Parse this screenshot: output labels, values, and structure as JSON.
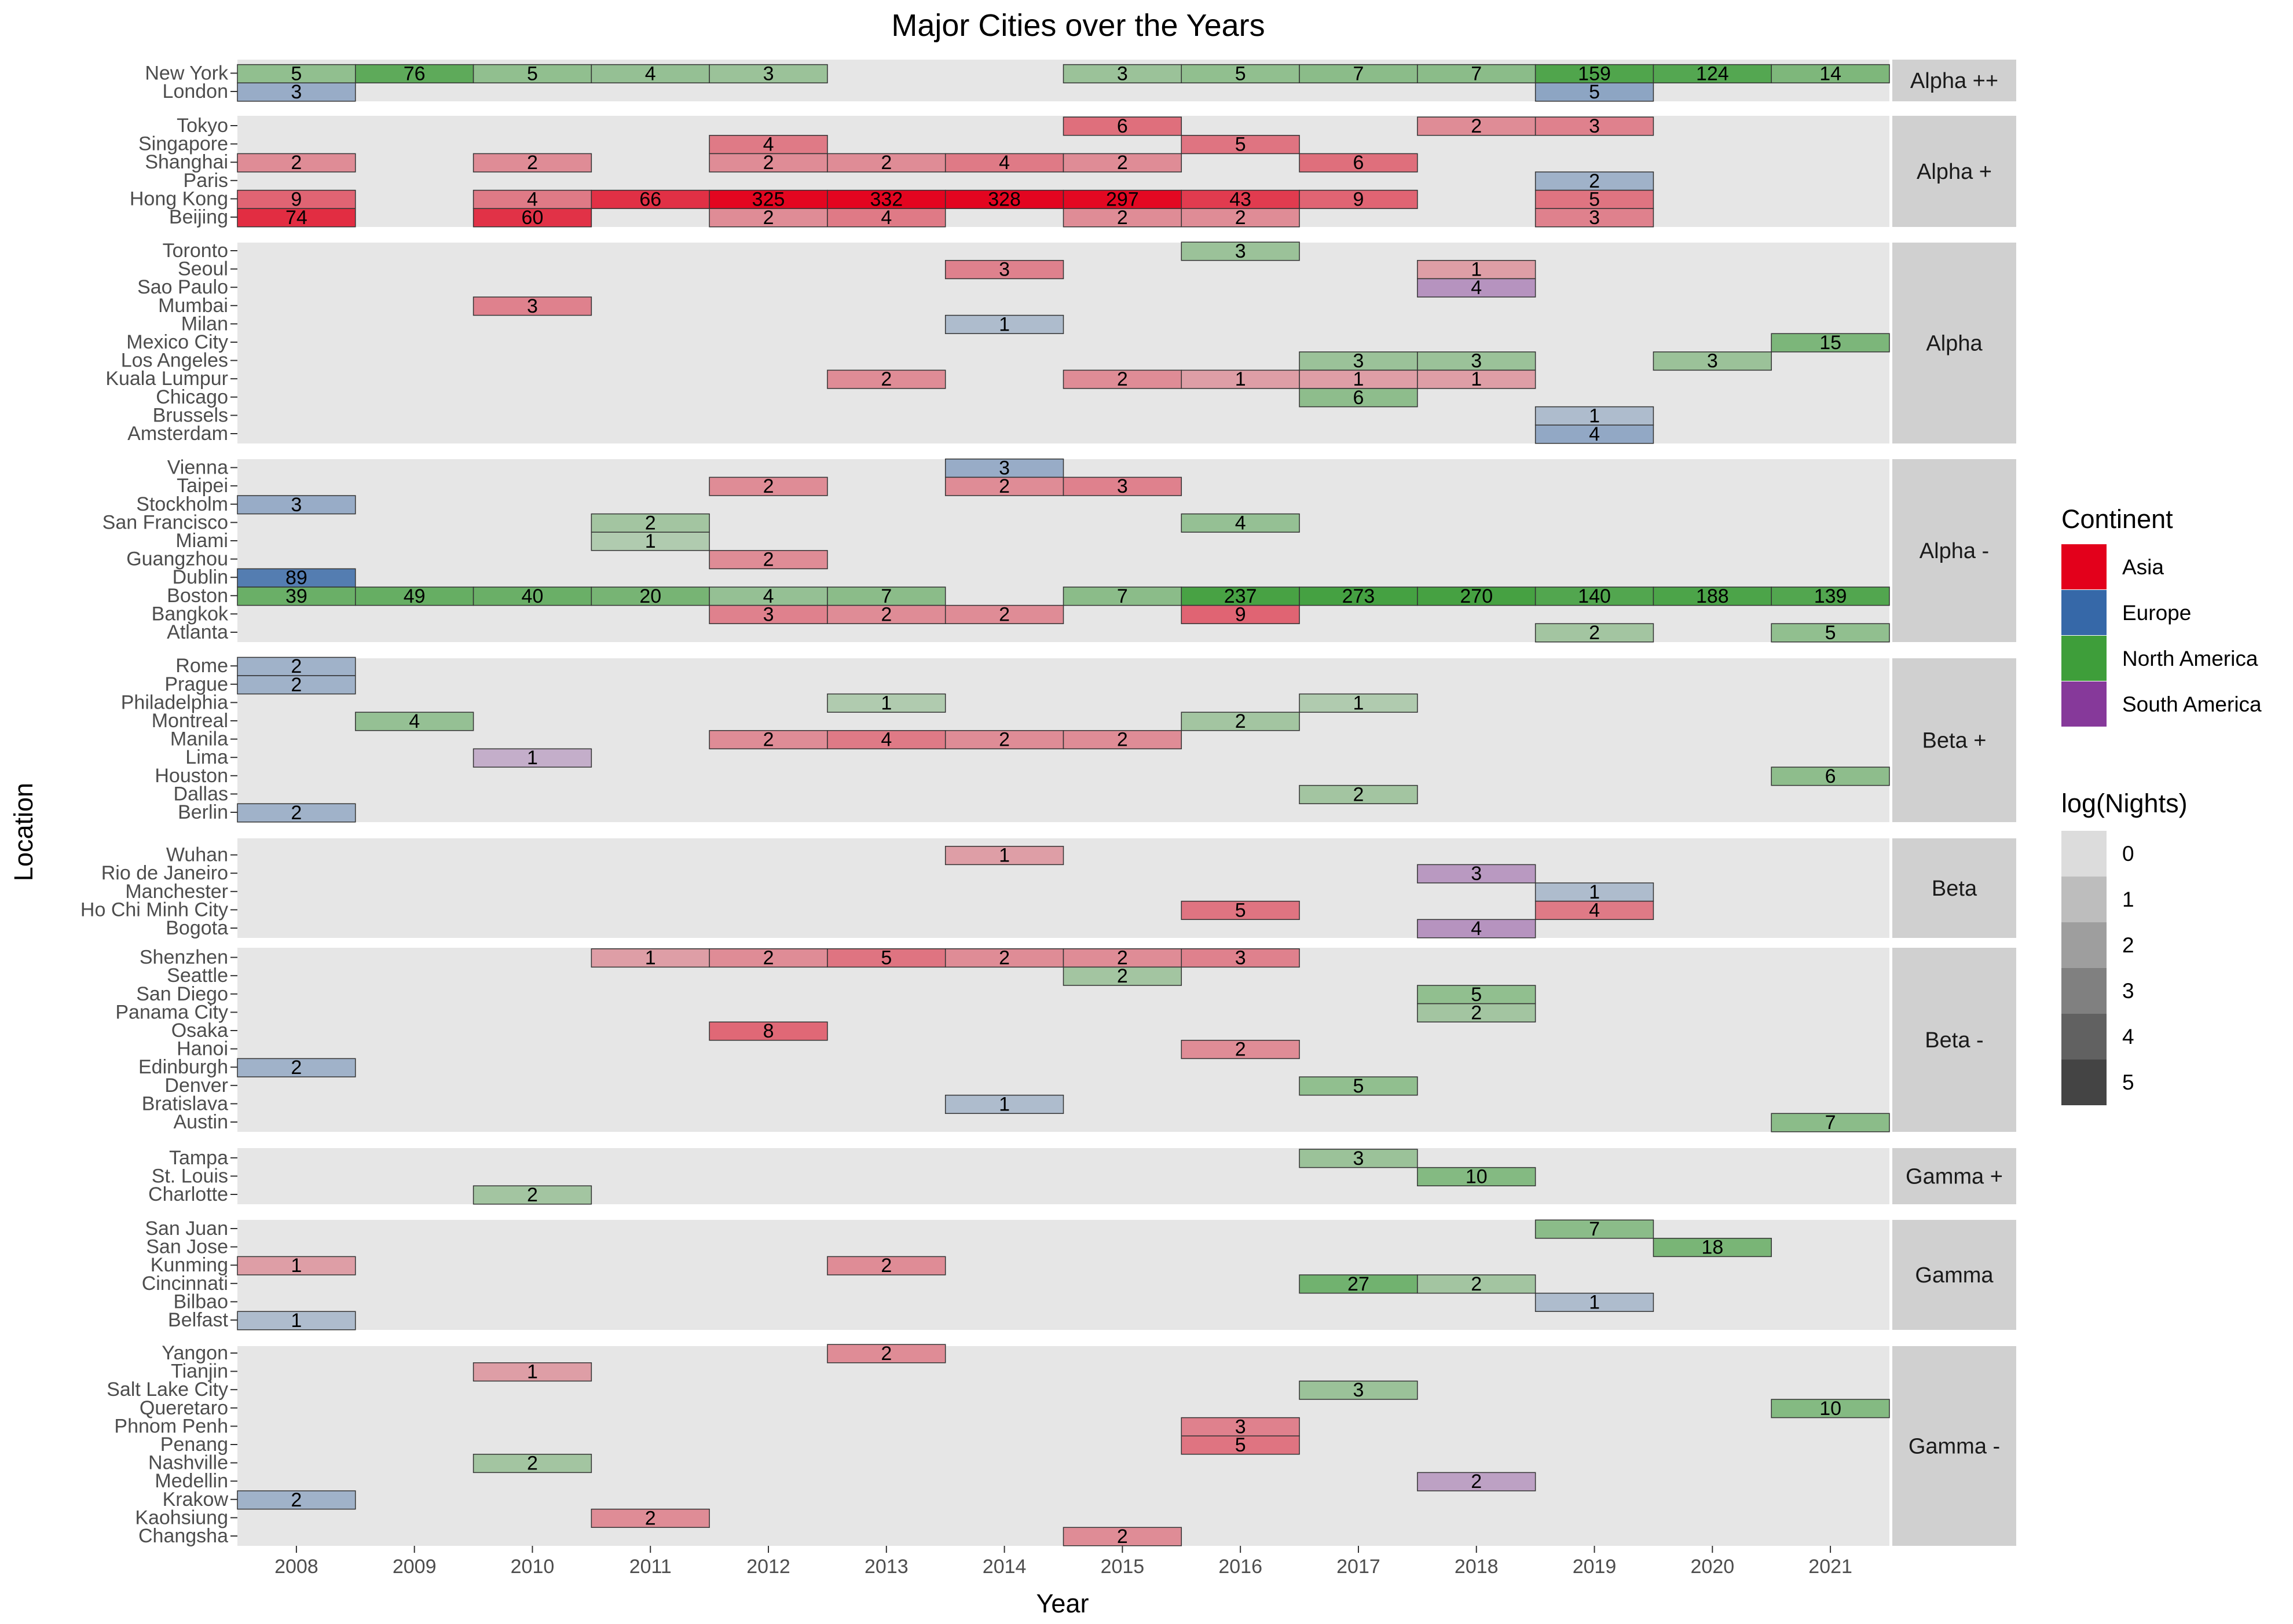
{
  "chart_data": {
    "type": "heatmap",
    "title": "Major Cities over the Years",
    "xlabel": "Year",
    "ylabel": "Location",
    "years": [
      "2008",
      "2009",
      "2010",
      "2011",
      "2012",
      "2013",
      "2014",
      "2015",
      "2016",
      "2017",
      "2018",
      "2019",
      "2020",
      "2021"
    ],
    "continent_colors": {
      "Asia": "#E3001B",
      "Europe": "#3668A8",
      "North America": "#3E9E3A",
      "South America": "#86399A"
    },
    "legend": {
      "continent": {
        "title": "Continent",
        "entries": [
          {
            "label": "Asia",
            "color": "#E3001B"
          },
          {
            "label": "Europe",
            "color": "#3668A8"
          },
          {
            "label": "North America",
            "color": "#3E9E3A"
          },
          {
            "label": "South America",
            "color": "#86399A"
          }
        ]
      },
      "nights": {
        "title": "log(Nights)",
        "entries": [
          {
            "label": "0",
            "color": "#DCDCDC"
          },
          {
            "label": "1",
            "color": "#BDBDBD"
          },
          {
            "label": "2",
            "color": "#9E9E9E"
          },
          {
            "label": "3",
            "color": "#808080"
          },
          {
            "label": "4",
            "color": "#616161"
          },
          {
            "label": "5",
            "color": "#444444"
          }
        ]
      }
    },
    "panels": [
      {
        "label": "Alpha ++",
        "cities": [
          {
            "name": "New York",
            "continent": "North America",
            "nights": {
              "2008": 5,
              "2009": 76,
              "2010": 5,
              "2011": 4,
              "2012": 3,
              "2015": 3,
              "2016": 5,
              "2017": 7,
              "2018": 7,
              "2019": 159,
              "2020": 124,
              "2021": 14
            }
          },
          {
            "name": "London",
            "continent": "Europe",
            "nights": {
              "2008": 3,
              "2019": 5
            }
          }
        ]
      },
      {
        "label": "Alpha +",
        "cities": [
          {
            "name": "Tokyo",
            "continent": "Asia",
            "nights": {
              "2015": 6,
              "2018": 2,
              "2019": 3
            }
          },
          {
            "name": "Singapore",
            "continent": "Asia",
            "nights": {
              "2012": 4,
              "2016": 5
            }
          },
          {
            "name": "Shanghai",
            "continent": "Asia",
            "nights": {
              "2008": 2,
              "2010": 2,
              "2012": 2,
              "2013": 2,
              "2014": 4,
              "2015": 2,
              "2017": 6
            }
          },
          {
            "name": "Paris",
            "continent": "Europe",
            "nights": {
              "2019": 2
            }
          },
          {
            "name": "Hong Kong",
            "continent": "Asia",
            "nights": {
              "2008": 9,
              "2010": 4,
              "2011": 66,
              "2012": 325,
              "2013": 332,
              "2014": 328,
              "2015": 297,
              "2016": 43,
              "2017": 9,
              "2019": 5
            }
          },
          {
            "name": "Beijing",
            "continent": "Asia",
            "nights": {
              "2008": 74,
              "2010": 60,
              "2012": 2,
              "2013": 4,
              "2015": 2,
              "2016": 2,
              "2019": 3
            }
          }
        ]
      },
      {
        "label": "Alpha",
        "cities": [
          {
            "name": "Toronto",
            "continent": "North America",
            "nights": {
              "2016": 3
            }
          },
          {
            "name": "Seoul",
            "continent": "Asia",
            "nights": {
              "2014": 3,
              "2018": 1
            }
          },
          {
            "name": "Sao Paulo",
            "continent": "South America",
            "nights": {
              "2018": 4
            }
          },
          {
            "name": "Mumbai",
            "continent": "Asia",
            "nights": {
              "2010": 3
            }
          },
          {
            "name": "Milan",
            "continent": "Europe",
            "nights": {
              "2014": 1
            }
          },
          {
            "name": "Mexico City",
            "continent": "North America",
            "nights": {
              "2021": 15
            }
          },
          {
            "name": "Los Angeles",
            "continent": "North America",
            "nights": {
              "2017": 3,
              "2018": 3,
              "2020": 3
            }
          },
          {
            "name": "Kuala Lumpur",
            "continent": "Asia",
            "nights": {
              "2013": 2,
              "2015": 2,
              "2016": 1,
              "2017": 1,
              "2018": 1
            }
          },
          {
            "name": "Chicago",
            "continent": "North America",
            "nights": {
              "2017": 6
            }
          },
          {
            "name": "Brussels",
            "continent": "Europe",
            "nights": {
              "2019": 1
            }
          },
          {
            "name": "Amsterdam",
            "continent": "Europe",
            "nights": {
              "2019": 4
            }
          }
        ]
      },
      {
        "label": "Alpha -",
        "cities": [
          {
            "name": "Vienna",
            "continent": "Europe",
            "nights": {
              "2014": 3
            }
          },
          {
            "name": "Taipei",
            "continent": "Asia",
            "nights": {
              "2012": 2,
              "2014": 2,
              "2015": 3
            }
          },
          {
            "name": "Stockholm",
            "continent": "Europe",
            "nights": {
              "2008": 3
            }
          },
          {
            "name": "San Francisco",
            "continent": "North America",
            "nights": {
              "2011": 2,
              "2016": 4
            }
          },
          {
            "name": "Miami",
            "continent": "North America",
            "nights": {
              "2011": 1
            }
          },
          {
            "name": "Guangzhou",
            "continent": "Asia",
            "nights": {
              "2012": 2
            }
          },
          {
            "name": "Dublin",
            "continent": "Europe",
            "nights": {
              "2008": 89
            }
          },
          {
            "name": "Boston",
            "continent": "North America",
            "nights": {
              "2008": 39,
              "2009": 49,
              "2010": 40,
              "2011": 20,
              "2012": 4,
              "2013": 7,
              "2015": 7,
              "2016": 237,
              "2017": 273,
              "2018": 270,
              "2019": 140,
              "2020": 188,
              "2021": 139
            }
          },
          {
            "name": "Bangkok",
            "continent": "Asia",
            "nights": {
              "2012": 3,
              "2013": 2,
              "2014": 2,
              "2016": 9
            }
          },
          {
            "name": "Atlanta",
            "continent": "North America",
            "nights": {
              "2019": 2,
              "2021": 5
            }
          }
        ]
      },
      {
        "label": "Beta +",
        "cities": [
          {
            "name": "Rome",
            "continent": "Europe",
            "nights": {
              "2008": 2
            }
          },
          {
            "name": "Prague",
            "continent": "Europe",
            "nights": {
              "2008": 2
            }
          },
          {
            "name": "Philadelphia",
            "continent": "North America",
            "nights": {
              "2013": 1,
              "2017": 1
            }
          },
          {
            "name": "Montreal",
            "continent": "North America",
            "nights": {
              "2009": 4,
              "2016": 2
            }
          },
          {
            "name": "Manila",
            "continent": "Asia",
            "nights": {
              "2012": 2,
              "2013": 4,
              "2014": 2,
              "2015": 2
            }
          },
          {
            "name": "Lima",
            "continent": "South America",
            "nights": {
              "2010": 1
            }
          },
          {
            "name": "Houston",
            "continent": "North America",
            "nights": {
              "2021": 6
            }
          },
          {
            "name": "Dallas",
            "continent": "North America",
            "nights": {
              "2017": 2
            }
          },
          {
            "name": "Berlin",
            "continent": "Europe",
            "nights": {
              "2008": 2
            }
          }
        ]
      },
      {
        "label": "Beta",
        "cities": [
          {
            "name": "Wuhan",
            "continent": "Asia",
            "nights": {
              "2014": 1
            }
          },
          {
            "name": "Rio de Janeiro",
            "continent": "South America",
            "nights": {
              "2018": 3
            }
          },
          {
            "name": "Manchester",
            "continent": "Europe",
            "nights": {
              "2019": 1
            }
          },
          {
            "name": "Ho Chi Minh City",
            "continent": "Asia",
            "nights": {
              "2016": 5,
              "2019": 4
            }
          },
          {
            "name": "Bogota",
            "continent": "South America",
            "nights": {
              "2018": 4
            }
          }
        ]
      },
      {
        "label": "Beta -",
        "cities": [
          {
            "name": "Shenzhen",
            "continent": "Asia",
            "nights": {
              "2011": 1,
              "2012": 2,
              "2013": 5,
              "2014": 2,
              "2015": 2,
              "2016": 3
            }
          },
          {
            "name": "Seattle",
            "continent": "North America",
            "nights": {
              "2015": 2
            }
          },
          {
            "name": "San Diego",
            "continent": "North America",
            "nights": {
              "2018": 5
            }
          },
          {
            "name": "Panama City",
            "continent": "North America",
            "nights": {
              "2018": 2
            }
          },
          {
            "name": "Osaka",
            "continent": "Asia",
            "nights": {
              "2012": 8
            }
          },
          {
            "name": "Hanoi",
            "continent": "Asia",
            "nights": {
              "2016": 2
            }
          },
          {
            "name": "Edinburgh",
            "continent": "Europe",
            "nights": {
              "2008": 2
            }
          },
          {
            "name": "Denver",
            "continent": "North America",
            "nights": {
              "2017": 5
            }
          },
          {
            "name": "Bratislava",
            "continent": "Europe",
            "nights": {
              "2014": 1
            }
          },
          {
            "name": "Austin",
            "continent": "North America",
            "nights": {
              "2021": 7
            }
          }
        ]
      },
      {
        "label": "Gamma +",
        "cities": [
          {
            "name": "Tampa",
            "continent": "North America",
            "nights": {
              "2017": 3
            }
          },
          {
            "name": "St. Louis",
            "continent": "North America",
            "nights": {
              "2018": 10
            }
          },
          {
            "name": "Charlotte",
            "continent": "North America",
            "nights": {
              "2010": 2
            }
          }
        ]
      },
      {
        "label": "Gamma",
        "cities": [
          {
            "name": "San Juan",
            "continent": "North America",
            "nights": {
              "2019": 7
            }
          },
          {
            "name": "San Jose",
            "continent": "North America",
            "nights": {
              "2020": 18
            }
          },
          {
            "name": "Kunming",
            "continent": "Asia",
            "nights": {
              "2008": 1,
              "2013": 2
            }
          },
          {
            "name": "Cincinnati",
            "continent": "North America",
            "nights": {
              "2017": 27,
              "2018": 2
            }
          },
          {
            "name": "Bilbao",
            "continent": "Europe",
            "nights": {
              "2019": 1
            }
          },
          {
            "name": "Belfast",
            "continent": "Europe",
            "nights": {
              "2008": 1
            }
          }
        ]
      },
      {
        "label": "Gamma -",
        "cities": [
          {
            "name": "Yangon",
            "continent": "Asia",
            "nights": {
              "2013": 2
            }
          },
          {
            "name": "Tianjin",
            "continent": "Asia",
            "nights": {
              "2010": 1
            }
          },
          {
            "name": "Salt Lake City",
            "continent": "North America",
            "nights": {
              "2017": 3
            }
          },
          {
            "name": "Queretaro",
            "continent": "North America",
            "nights": {
              "2021": 10
            }
          },
          {
            "name": "Phnom Penh",
            "continent": "Asia",
            "nights": {
              "2016": 3
            }
          },
          {
            "name": "Penang",
            "continent": "Asia",
            "nights": {
              "2016": 5
            }
          },
          {
            "name": "Nashville",
            "continent": "North America",
            "nights": {
              "2010": 2
            }
          },
          {
            "name": "Medellin",
            "continent": "South America",
            "nights": {
              "2018": 2
            }
          },
          {
            "name": "Krakow",
            "continent": "Europe",
            "nights": {
              "2008": 2
            }
          },
          {
            "name": "Kaohsiung",
            "continent": "Asia",
            "nights": {
              "2011": 2
            }
          },
          {
            "name": "Changsha",
            "continent": "Asia",
            "nights": {
              "2015": 2
            }
          }
        ]
      }
    ]
  }
}
